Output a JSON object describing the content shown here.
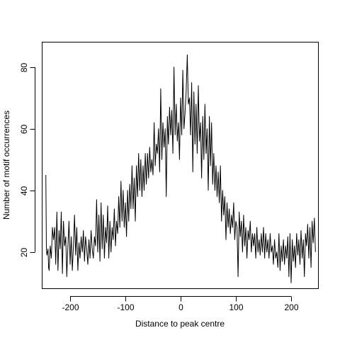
{
  "chart_data": {
    "type": "line",
    "title": "",
    "xlabel": "Distance to peak centre",
    "ylabel": "Number of motif occurrences",
    "xlim": [
      -250,
      250
    ],
    "ylim": [
      8,
      88
    ],
    "x_ticks": [
      -200,
      -100,
      0,
      100,
      200
    ],
    "y_ticks": [
      20,
      40,
      60,
      80
    ],
    "grid": false,
    "legend": "none",
    "series": [
      {
        "color": "#000000",
        "points": [
          [
            -244,
            45
          ],
          [
            -243,
            21
          ],
          [
            -242,
            19
          ],
          [
            -240,
            21
          ],
          [
            -239,
            15
          ],
          [
            -238,
            14
          ],
          [
            -236,
            22
          ],
          [
            -234,
            18
          ],
          [
            -232,
            28
          ],
          [
            -230,
            24
          ],
          [
            -228,
            28
          ],
          [
            -226,
            16
          ],
          [
            -224,
            33
          ],
          [
            -222,
            14
          ],
          [
            -220,
            27
          ],
          [
            -218,
            21
          ],
          [
            -216,
            33
          ],
          [
            -214,
            13
          ],
          [
            -212,
            30
          ],
          [
            -210,
            22
          ],
          [
            -208,
            25
          ],
          [
            -206,
            12
          ],
          [
            -204,
            22
          ],
          [
            -202,
            30
          ],
          [
            -200,
            16
          ],
          [
            -198,
            25
          ],
          [
            -196,
            14
          ],
          [
            -194,
            22
          ],
          [
            -192,
            32
          ],
          [
            -190,
            19
          ],
          [
            -188,
            28
          ],
          [
            -186,
            14
          ],
          [
            -184,
            23
          ],
          [
            -182,
            18
          ],
          [
            -180,
            25
          ],
          [
            -178,
            20
          ],
          [
            -176,
            27
          ],
          [
            -174,
            17
          ],
          [
            -172,
            25
          ],
          [
            -170,
            21
          ],
          [
            -168,
            16
          ],
          [
            -166,
            24
          ],
          [
            -164,
            18
          ],
          [
            -162,
            27
          ],
          [
            -160,
            21
          ],
          [
            -158,
            18
          ],
          [
            -156,
            25
          ],
          [
            -154,
            22
          ],
          [
            -152,
            37
          ],
          [
            -150,
            20
          ],
          [
            -148,
            32
          ],
          [
            -146,
            17
          ],
          [
            -144,
            36
          ],
          [
            -142,
            21
          ],
          [
            -140,
            32
          ],
          [
            -138,
            18
          ],
          [
            -136,
            28
          ],
          [
            -134,
            23
          ],
          [
            -132,
            35
          ],
          [
            -130,
            18
          ],
          [
            -128,
            30
          ],
          [
            -126,
            20
          ],
          [
            -124,
            28
          ],
          [
            -122,
            24
          ],
          [
            -120,
            34
          ],
          [
            -118,
            22
          ],
          [
            -116,
            30
          ],
          [
            -114,
            26
          ],
          [
            -112,
            38
          ],
          [
            -110,
            28
          ],
          [
            -108,
            43
          ],
          [
            -106,
            30
          ],
          [
            -104,
            40
          ],
          [
            -102,
            28
          ],
          [
            -100,
            36
          ],
          [
            -98,
            25
          ],
          [
            -96,
            40
          ],
          [
            -94,
            30
          ],
          [
            -92,
            42
          ],
          [
            -90,
            34
          ],
          [
            -88,
            48
          ],
          [
            -86,
            34
          ],
          [
            -84,
            44
          ],
          [
            -82,
            30
          ],
          [
            -80,
            48
          ],
          [
            -78,
            38
          ],
          [
            -76,
            52
          ],
          [
            -74,
            40
          ],
          [
            -72,
            50
          ],
          [
            -70,
            38
          ],
          [
            -68,
            48
          ],
          [
            -66,
            40
          ],
          [
            -64,
            52
          ],
          [
            -62,
            42
          ],
          [
            -60,
            52
          ],
          [
            -58,
            44
          ],
          [
            -56,
            54
          ],
          [
            -54,
            46
          ],
          [
            -52,
            50
          ],
          [
            -50,
            45
          ],
          [
            -48,
            62
          ],
          [
            -46,
            48
          ],
          [
            -44,
            55
          ],
          [
            -42,
            52
          ],
          [
            -40,
            60
          ],
          [
            -38,
            46
          ],
          [
            -36,
            73
          ],
          [
            -34,
            50
          ],
          [
            -32,
            62
          ],
          [
            -30,
            54
          ],
          [
            -28,
            60
          ],
          [
            -26,
            38
          ],
          [
            -24,
            64
          ],
          [
            -22,
            55
          ],
          [
            -20,
            67
          ],
          [
            -18,
            58
          ],
          [
            -16,
            66
          ],
          [
            -14,
            52
          ],
          [
            -12,
            80
          ],
          [
            -10,
            58
          ],
          [
            -8,
            68
          ],
          [
            -6,
            56
          ],
          [
            -4,
            62
          ],
          [
            -2,
            50
          ],
          [
            0,
            70
          ],
          [
            2,
            58
          ],
          [
            4,
            79
          ],
          [
            6,
            60
          ],
          [
            8,
            65
          ],
          [
            10,
            72
          ],
          [
            12,
            84
          ],
          [
            14,
            68
          ],
          [
            16,
            70
          ],
          [
            18,
            58
          ],
          [
            20,
            75
          ],
          [
            22,
            46
          ],
          [
            24,
            72
          ],
          [
            26,
            55
          ],
          [
            28,
            68
          ],
          [
            30,
            52
          ],
          [
            32,
            74
          ],
          [
            34,
            56
          ],
          [
            36,
            62
          ],
          [
            38,
            44
          ],
          [
            40,
            64
          ],
          [
            42,
            50
          ],
          [
            44,
            68
          ],
          [
            46,
            52
          ],
          [
            48,
            60
          ],
          [
            50,
            40
          ],
          [
            52,
            64
          ],
          [
            54,
            48
          ],
          [
            56,
            62
          ],
          [
            58,
            42
          ],
          [
            60,
            52
          ],
          [
            62,
            40
          ],
          [
            64,
            48
          ],
          [
            66,
            38
          ],
          [
            68,
            46
          ],
          [
            70,
            36
          ],
          [
            72,
            48
          ],
          [
            74,
            30
          ],
          [
            76,
            40
          ],
          [
            78,
            32
          ],
          [
            80,
            38
          ],
          [
            82,
            24
          ],
          [
            84,
            36
          ],
          [
            86,
            28
          ],
          [
            88,
            34
          ],
          [
            90,
            26
          ],
          [
            92,
            32
          ],
          [
            94,
            28
          ],
          [
            96,
            36
          ],
          [
            98,
            24
          ],
          [
            100,
            30
          ],
          [
            102,
            28
          ],
          [
            104,
            12
          ],
          [
            106,
            33
          ],
          [
            108,
            25
          ],
          [
            110,
            30
          ],
          [
            112,
            20
          ],
          [
            114,
            32
          ],
          [
            116,
            22
          ],
          [
            118,
            28
          ],
          [
            120,
            18
          ],
          [
            122,
            27
          ],
          [
            124,
            24
          ],
          [
            126,
            30
          ],
          [
            128,
            20
          ],
          [
            130,
            26
          ],
          [
            132,
            22
          ],
          [
            134,
            26
          ],
          [
            136,
            18
          ],
          [
            138,
            28
          ],
          [
            140,
            20
          ],
          [
            142,
            24
          ],
          [
            144,
            19
          ],
          [
            146,
            26
          ],
          [
            148,
            20
          ],
          [
            150,
            28
          ],
          [
            152,
            18
          ],
          [
            154,
            26
          ],
          [
            156,
            20
          ],
          [
            158,
            24
          ],
          [
            160,
            18
          ],
          [
            162,
            26
          ],
          [
            164,
            20
          ],
          [
            166,
            22
          ],
          [
            168,
            16
          ],
          [
            170,
            24
          ],
          [
            172,
            18
          ],
          [
            174,
            20
          ],
          [
            176,
            15
          ],
          [
            178,
            26
          ],
          [
            180,
            14
          ],
          [
            182,
            22
          ],
          [
            184,
            17
          ],
          [
            186,
            24
          ],
          [
            188,
            16
          ],
          [
            190,
            22
          ],
          [
            192,
            18
          ],
          [
            194,
            25
          ],
          [
            196,
            12
          ],
          [
            198,
            26
          ],
          [
            200,
            10
          ],
          [
            202,
            24
          ],
          [
            204,
            17
          ],
          [
            206,
            22
          ],
          [
            208,
            15
          ],
          [
            210,
            26
          ],
          [
            212,
            19
          ],
          [
            214,
            24
          ],
          [
            216,
            16
          ],
          [
            218,
            27
          ],
          [
            220,
            18
          ],
          [
            222,
            24
          ],
          [
            224,
            12
          ],
          [
            226,
            26
          ],
          [
            228,
            22
          ],
          [
            230,
            29
          ],
          [
            232,
            18
          ],
          [
            234,
            28
          ],
          [
            236,
            15
          ],
          [
            238,
            30
          ],
          [
            240,
            23
          ],
          [
            242,
            31
          ],
          [
            244,
            20
          ]
        ]
      }
    ]
  }
}
